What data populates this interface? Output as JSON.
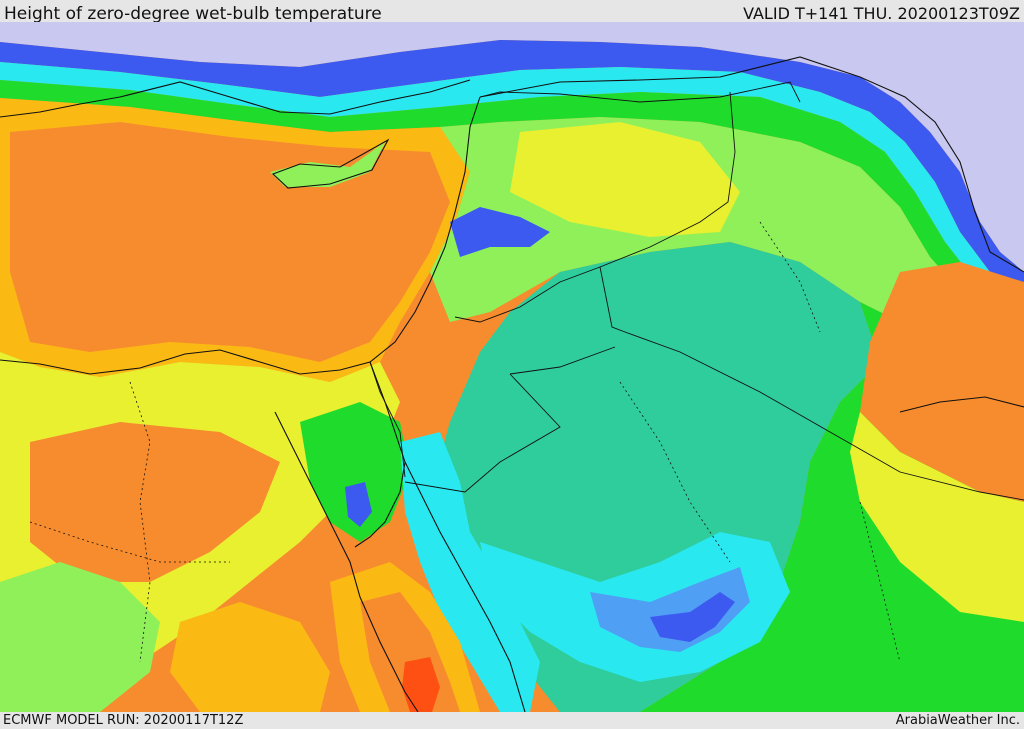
{
  "header": {
    "title": "Height of zero-degree wet-bulb temperature",
    "valid": "VALID T+141 THU. 20200123T09Z"
  },
  "footer": {
    "model_run": "ECMWF MODEL RUN: 20200117T12Z",
    "credit": "ArabiaWeather Inc."
  },
  "map": {
    "palette": {
      "very_low": "#c8c8f0",
      "low_blue": "#3c5af0",
      "mid_blue": "#4fa0f5",
      "cyan": "#2ae8f0",
      "teal": "#2fcc9c",
      "green": "#1fdc2c",
      "light_green": "#8ff05a",
      "yellow": "#e8f030",
      "amber": "#fbb914",
      "orange": "#f78c2e",
      "red_orange": "#ff5014",
      "border": "#111111"
    }
  }
}
